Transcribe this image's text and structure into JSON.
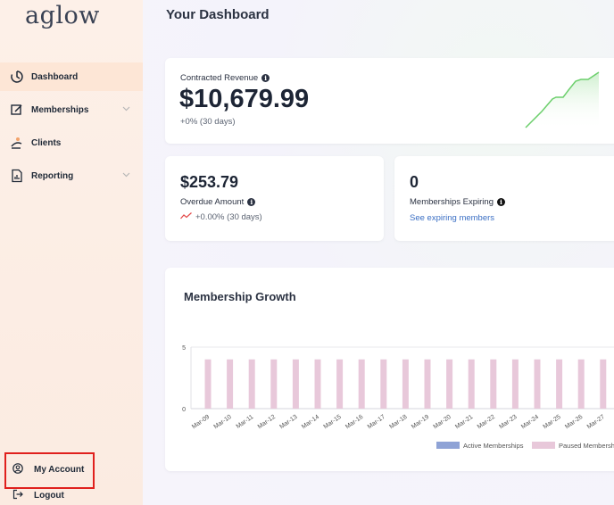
{
  "app": {
    "logo": "aglow"
  },
  "sidebar": {
    "items": [
      {
        "label": "Dashboard",
        "icon": "dashboard-icon",
        "active": true,
        "has_chevron": false
      },
      {
        "label": "Memberships",
        "icon": "memberships-icon",
        "active": false,
        "has_chevron": true
      },
      {
        "label": "Clients",
        "icon": "clients-icon",
        "active": false,
        "has_chevron": false
      },
      {
        "label": "Reporting",
        "icon": "reporting-icon",
        "active": false,
        "has_chevron": true
      }
    ],
    "account_label": "My Account",
    "logout_label": "Logout"
  },
  "main": {
    "title": "Your Dashboard",
    "revenue": {
      "label": "Contracted Revenue",
      "value": "$10,679.99",
      "change": "+0% (30 days)"
    },
    "overdue": {
      "value": "$253.79",
      "label": "Overdue Amount",
      "change": "+0.00% (30 days)"
    },
    "expiring": {
      "value": "0",
      "label": "Memberships Expiring",
      "link": "See expiring members"
    },
    "growth_title": "Membership Growth"
  },
  "colors": {
    "accent_link": "#3b6fc4",
    "active_series": "#8fa3d6",
    "paused_series": "#e8c8da",
    "highlight_box": "#e0201d",
    "sparkline": "#6ccf6c"
  },
  "chart_data": {
    "type": "bar",
    "categories": [
      "Mar-09",
      "Mar-10",
      "Mar-11",
      "Mar-12",
      "Mar-13",
      "Mar-14",
      "Mar-15",
      "Mar-16",
      "Mar-17",
      "Mar-18",
      "Mar-19",
      "Mar-20",
      "Mar-21",
      "Mar-22",
      "Mar-23",
      "Mar-24",
      "Mar-25",
      "Mar-26",
      "Mar-27"
    ],
    "series": [
      {
        "name": "Active Memberships",
        "values": [
          0,
          0,
          0,
          0,
          0,
          0,
          0,
          0,
          0,
          0,
          0,
          0,
          0,
          0,
          0,
          0,
          0,
          0,
          0
        ]
      },
      {
        "name": "Paused Memberships",
        "values": [
          4,
          4,
          4,
          4,
          4,
          4,
          4,
          4,
          4,
          4,
          4,
          4,
          4,
          4,
          4,
          4,
          4,
          4,
          4
        ]
      }
    ],
    "yticks": [
      "0",
      "5"
    ],
    "ylim": [
      0,
      5
    ],
    "legend_position": "bottom",
    "legend_labels": [
      "Active Memberships",
      "Paused Memberships"
    ]
  }
}
